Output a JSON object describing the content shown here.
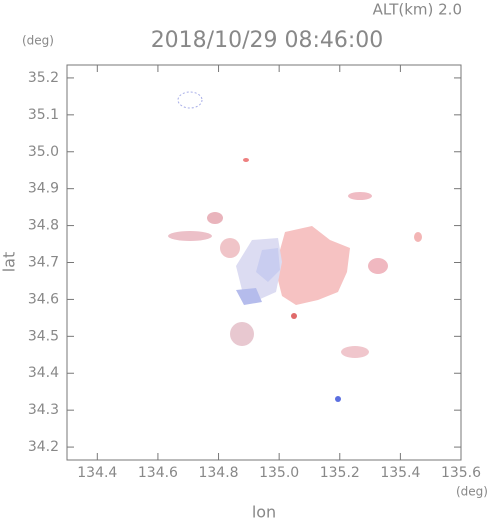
{
  "chart_data": {
    "type": "map",
    "title": "2018/10/29 08:46:00",
    "subtitle": "ALT(km) 2.0",
    "x_label": "lon",
    "y_label": "lat",
    "x_unit": "(deg)",
    "y_unit": "(deg)",
    "xlim": [
      134.3,
      135.6
    ],
    "ylim": [
      34.165,
      35.235
    ],
    "xticks": [
      134.4,
      134.6,
      134.8,
      {
        "value": 135,
        "label": "135.0"
      },
      135.2,
      135.4,
      135.6
    ],
    "yticks": [
      34.2,
      34.3,
      34.4,
      34.5,
      34.6,
      34.7,
      34.8,
      34.9,
      {
        "value": 35,
        "label": "35.0"
      },
      35.1,
      35.2
    ]
  }
}
